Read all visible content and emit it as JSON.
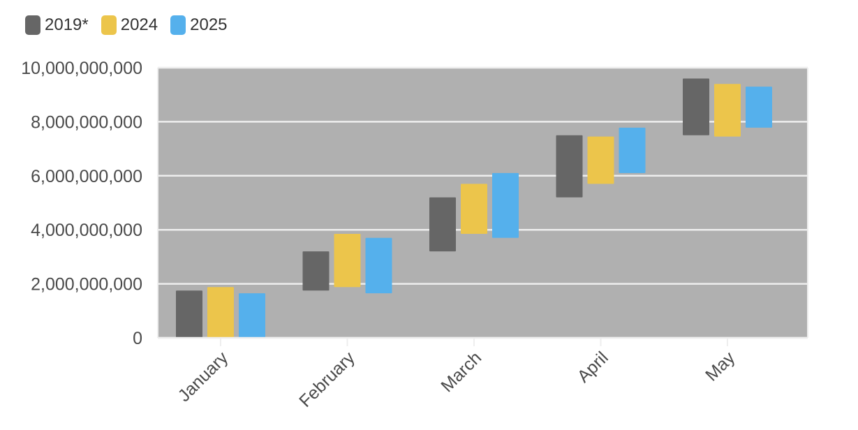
{
  "colors": {
    "plot_background": "#b0b0b0",
    "gridline": "#eeeeee",
    "axis_text": "#4a4a4a"
  },
  "chart_data": {
    "type": "bar",
    "subtype": "floating-waterfall",
    "categories": [
      "January",
      "February",
      "March",
      "April",
      "May"
    ],
    "series": [
      {
        "name": "2019*",
        "color": "#666666",
        "ranges": [
          [
            0,
            1750000000
          ],
          [
            1750000000,
            3200000000
          ],
          [
            3200000000,
            5200000000
          ],
          [
            5200000000,
            7500000000
          ],
          [
            7500000000,
            9600000000
          ]
        ]
      },
      {
        "name": "2024",
        "color": "#ecc54b",
        "ranges": [
          [
            0,
            1880000000
          ],
          [
            1880000000,
            3850000000
          ],
          [
            3850000000,
            5700000000
          ],
          [
            5700000000,
            7450000000
          ],
          [
            7450000000,
            9400000000
          ]
        ]
      },
      {
        "name": "2025",
        "color": "#55b0ec",
        "ranges": [
          [
            0,
            1650000000
          ],
          [
            1650000000,
            3700000000
          ],
          [
            3700000000,
            6100000000
          ],
          [
            6100000000,
            7780000000
          ],
          [
            7780000000,
            9300000000
          ]
        ]
      }
    ],
    "ylim": [
      0,
      10000000000
    ],
    "yticks": [
      0,
      2000000000,
      4000000000,
      6000000000,
      8000000000,
      10000000000
    ],
    "ytick_labels": [
      "0",
      "2,000,000,000",
      "4,000,000,000",
      "6,000,000,000",
      "8,000,000,000",
      "10,000,000,000"
    ],
    "legend_position": "top-left",
    "grid": true,
    "title": "",
    "xlabel": "",
    "ylabel": ""
  }
}
